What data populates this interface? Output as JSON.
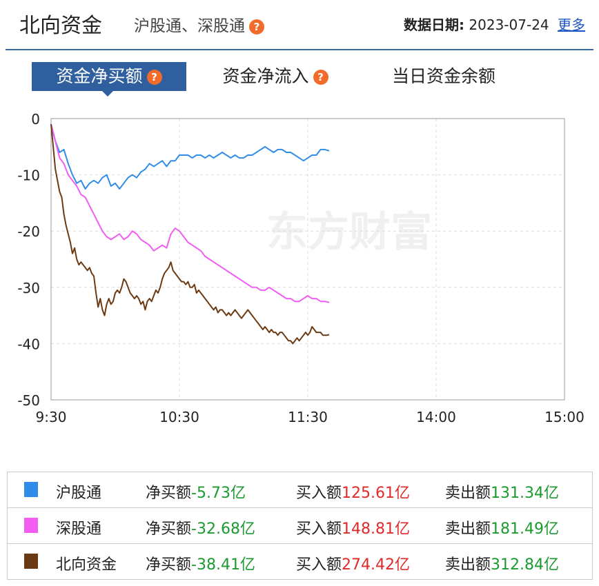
{
  "header": {
    "title": "北向资金",
    "subtitle": "沪股通、深股通",
    "date_label": "数据日期:",
    "date_value": "2023-07-24",
    "more_label": "更多"
  },
  "tabs": [
    {
      "label": "资金净买额",
      "active": true,
      "help": true
    },
    {
      "label": "资金净流入",
      "active": false,
      "help": true
    },
    {
      "label": "当日资金余额",
      "active": false,
      "help": false
    }
  ],
  "watermark": "东方财富",
  "colors": {
    "hgt": "#2f8ce8",
    "sgt": "#f25cf2",
    "north": "#6b3a12",
    "tab_active": "#2f5f9e",
    "net_value": "#1b9a2f",
    "buy_value": "#e02a2a"
  },
  "chart_data": {
    "type": "line",
    "xlabel": "",
    "ylabel": "",
    "x_ticks": [
      "9:30",
      "10:30",
      "11:30",
      "14:00",
      "15:00"
    ],
    "y_ticks": [
      0,
      -10,
      -20,
      -30,
      -40,
      -50
    ],
    "ylim": [
      -50,
      0
    ],
    "grid": true,
    "series": [
      {
        "name": "沪股通",
        "color_key": "hgt",
        "points": [
          [
            0,
            -1
          ],
          [
            2,
            -4
          ],
          [
            4,
            -6
          ],
          [
            6,
            -5.5
          ],
          [
            8,
            -8
          ],
          [
            10,
            -10
          ],
          [
            12,
            -11.5
          ],
          [
            14,
            -11
          ],
          [
            16,
            -12.5
          ],
          [
            18,
            -11.5
          ],
          [
            20,
            -11
          ],
          [
            22,
            -11.5
          ],
          [
            24,
            -10.5
          ],
          [
            26,
            -10
          ],
          [
            28,
            -12
          ],
          [
            30,
            -11.5
          ],
          [
            32,
            -12.5
          ],
          [
            34,
            -11.5
          ],
          [
            36,
            -10.5
          ],
          [
            38,
            -10
          ],
          [
            40,
            -10.5
          ],
          [
            42,
            -9.5
          ],
          [
            44,
            -9
          ],
          [
            46,
            -8
          ],
          [
            48,
            -8.5
          ],
          [
            50,
            -8
          ],
          [
            52,
            -7.5
          ],
          [
            54,
            -8.5
          ],
          [
            56,
            -7.5
          ],
          [
            58,
            -7.5
          ],
          [
            60,
            -6.5
          ],
          [
            62,
            -6.5
          ],
          [
            64,
            -6.5
          ],
          [
            66,
            -7
          ],
          [
            68,
            -6.5
          ],
          [
            70,
            -6.5
          ],
          [
            72,
            -7
          ],
          [
            74,
            -6.5
          ],
          [
            76,
            -7
          ],
          [
            78,
            -6.5
          ],
          [
            80,
            -6
          ],
          [
            82,
            -6.5
          ],
          [
            84,
            -7
          ],
          [
            86,
            -6.5
          ],
          [
            88,
            -7
          ],
          [
            90,
            -7
          ],
          [
            92,
            -6.5
          ],
          [
            94,
            -6.5
          ],
          [
            96,
            -6
          ],
          [
            98,
            -5.5
          ],
          [
            100,
            -5
          ],
          [
            102,
            -5.5
          ],
          [
            104,
            -6
          ],
          [
            106,
            -5.5
          ],
          [
            108,
            -5.5
          ],
          [
            110,
            -6
          ],
          [
            112,
            -6
          ],
          [
            114,
            -6.5
          ],
          [
            116,
            -7
          ],
          [
            118,
            -7.5
          ],
          [
            120,
            -7
          ],
          [
            122,
            -6.5
          ],
          [
            124,
            -6.5
          ],
          [
            126,
            -5.5
          ],
          [
            128,
            -5.5
          ],
          [
            130,
            -5.73
          ]
        ]
      },
      {
        "name": "深股通",
        "color_key": "sgt",
        "points": [
          [
            0,
            -1
          ],
          [
            2,
            -4
          ],
          [
            4,
            -7
          ],
          [
            6,
            -8
          ],
          [
            8,
            -10
          ],
          [
            10,
            -11
          ],
          [
            12,
            -12
          ],
          [
            14,
            -13.5
          ],
          [
            16,
            -14
          ],
          [
            18,
            -15.5
          ],
          [
            20,
            -17
          ],
          [
            22,
            -18.5
          ],
          [
            24,
            -20
          ],
          [
            26,
            -21
          ],
          [
            28,
            -21.5
          ],
          [
            30,
            -21
          ],
          [
            32,
            -20.5
          ],
          [
            34,
            -21.5
          ],
          [
            36,
            -21
          ],
          [
            38,
            -20
          ],
          [
            40,
            -20.5
          ],
          [
            42,
            -21.5
          ],
          [
            44,
            -22
          ],
          [
            46,
            -22.5
          ],
          [
            48,
            -23.5
          ],
          [
            50,
            -23
          ],
          [
            52,
            -22.5
          ],
          [
            54,
            -23
          ],
          [
            56,
            -20.5
          ],
          [
            58,
            -19.5
          ],
          [
            60,
            -20
          ],
          [
            62,
            -21
          ],
          [
            64,
            -22
          ],
          [
            66,
            -22.5
          ],
          [
            68,
            -23
          ],
          [
            70,
            -23.5
          ],
          [
            72,
            -24.5
          ],
          [
            74,
            -25
          ],
          [
            76,
            -25.5
          ],
          [
            78,
            -26
          ],
          [
            80,
            -26.5
          ],
          [
            82,
            -27
          ],
          [
            84,
            -27.5
          ],
          [
            86,
            -28
          ],
          [
            88,
            -28.5
          ],
          [
            90,
            -29
          ],
          [
            92,
            -29.5
          ],
          [
            94,
            -30
          ],
          [
            96,
            -30
          ],
          [
            98,
            -30.5
          ],
          [
            100,
            -30.5
          ],
          [
            102,
            -30
          ],
          [
            104,
            -30.5
          ],
          [
            106,
            -31
          ],
          [
            108,
            -31.5
          ],
          [
            110,
            -32
          ],
          [
            112,
            -32
          ],
          [
            114,
            -32.5
          ],
          [
            116,
            -32.5
          ],
          [
            118,
            -32
          ],
          [
            120,
            -31.5
          ],
          [
            122,
            -32
          ],
          [
            124,
            -32
          ],
          [
            126,
            -32.5
          ],
          [
            128,
            -32.5
          ],
          [
            130,
            -32.68
          ]
        ]
      },
      {
        "name": "北向资金",
        "color_key": "north",
        "points": [
          [
            0,
            -1
          ],
          [
            1,
            -5
          ],
          [
            2,
            -9
          ],
          [
            3,
            -11
          ],
          [
            4,
            -13
          ],
          [
            5,
            -14
          ],
          [
            6,
            -17
          ],
          [
            7,
            -19
          ],
          [
            8,
            -20.5
          ],
          [
            9,
            -22
          ],
          [
            10,
            -24
          ],
          [
            11,
            -23
          ],
          [
            12,
            -25
          ],
          [
            13,
            -26
          ],
          [
            14,
            -25.5
          ],
          [
            15,
            -26
          ],
          [
            16,
            -26.5
          ],
          [
            17,
            -27
          ],
          [
            18,
            -26.5
          ],
          [
            19,
            -27.5
          ],
          [
            20,
            -28
          ],
          [
            21,
            -31
          ],
          [
            22,
            -33.5
          ],
          [
            23,
            -32
          ],
          [
            24,
            -34
          ],
          [
            25,
            -35
          ],
          [
            26,
            -33
          ],
          [
            27,
            -32
          ],
          [
            28,
            -33
          ],
          [
            29,
            -32.5
          ],
          [
            30,
            -31
          ],
          [
            31,
            -30.5
          ],
          [
            32,
            -31
          ],
          [
            33,
            -30
          ],
          [
            34,
            -28.5
          ],
          [
            35,
            -29
          ],
          [
            36,
            -30
          ],
          [
            37,
            -31
          ],
          [
            38,
            -31.5
          ],
          [
            39,
            -32
          ],
          [
            40,
            -31.5
          ],
          [
            41,
            -32
          ],
          [
            42,
            -33
          ],
          [
            43,
            -32.5
          ],
          [
            44,
            -34
          ],
          [
            45,
            -32.5
          ],
          [
            46,
            -32
          ],
          [
            47,
            -32.5
          ],
          [
            48,
            -31.5
          ],
          [
            49,
            -30.5
          ],
          [
            50,
            -31
          ],
          [
            51,
            -30
          ],
          [
            52,
            -28.5
          ],
          [
            53,
            -27.5
          ],
          [
            54,
            -27
          ],
          [
            55,
            -26.5
          ],
          [
            56,
            -25.5
          ],
          [
            57,
            -27
          ],
          [
            58,
            -27.5
          ],
          [
            59,
            -28
          ],
          [
            60,
            -28.5
          ],
          [
            61,
            -29
          ],
          [
            62,
            -29
          ],
          [
            63,
            -29.5
          ],
          [
            64,
            -29
          ],
          [
            65,
            -30
          ],
          [
            66,
            -30
          ],
          [
            67,
            -29.5
          ],
          [
            68,
            -31
          ],
          [
            69,
            -30.5
          ],
          [
            70,
            -31
          ],
          [
            71,
            -31.5
          ],
          [
            72,
            -32
          ],
          [
            73,
            -32.5
          ],
          [
            74,
            -33
          ],
          [
            75,
            -33.5
          ],
          [
            76,
            -34
          ],
          [
            77,
            -33.5
          ],
          [
            78,
            -34.5
          ],
          [
            79,
            -34
          ],
          [
            80,
            -34
          ],
          [
            81,
            -34.5
          ],
          [
            82,
            -35
          ],
          [
            83,
            -34.5
          ],
          [
            84,
            -35
          ],
          [
            85,
            -34.5
          ],
          [
            86,
            -34
          ],
          [
            87,
            -34.5
          ],
          [
            88,
            -35
          ],
          [
            89,
            -35.5
          ],
          [
            90,
            -35
          ],
          [
            91,
            -34.5
          ],
          [
            92,
            -34
          ],
          [
            93,
            -34.5
          ],
          [
            94,
            -35
          ],
          [
            95,
            -35.5
          ],
          [
            96,
            -36
          ],
          [
            97,
            -36.5
          ],
          [
            98,
            -37
          ],
          [
            99,
            -37.5
          ],
          [
            100,
            -37
          ],
          [
            101,
            -37.5
          ],
          [
            102,
            -38
          ],
          [
            103,
            -37.5
          ],
          [
            104,
            -38
          ],
          [
            105,
            -38
          ],
          [
            106,
            -38.5
          ],
          [
            107,
            -38
          ],
          [
            108,
            -38
          ],
          [
            109,
            -38.5
          ],
          [
            110,
            -39
          ],
          [
            111,
            -39.5
          ],
          [
            112,
            -39.5
          ],
          [
            113,
            -40
          ],
          [
            114,
            -39.5
          ],
          [
            115,
            -39
          ],
          [
            116,
            -39.5
          ],
          [
            117,
            -39
          ],
          [
            118,
            -38.5
          ],
          [
            119,
            -38
          ],
          [
            120,
            -38.5
          ],
          [
            121,
            -38
          ],
          [
            122,
            -37
          ],
          [
            123,
            -37.5
          ],
          [
            124,
            -38
          ],
          [
            125,
            -38
          ],
          [
            126,
            -38
          ],
          [
            127,
            -38.5
          ],
          [
            128,
            -38.5
          ],
          [
            129,
            -38.5
          ],
          [
            130,
            -38.41
          ]
        ]
      }
    ]
  },
  "legend": [
    {
      "name": "沪股通",
      "color_key": "hgt",
      "net_label": "净买额",
      "net_value": "-5.73亿",
      "buy_label": "买入额",
      "buy_value": "125.61亿",
      "sell_label": "卖出额",
      "sell_value": "131.34亿"
    },
    {
      "name": "深股通",
      "color_key": "sgt",
      "net_label": "净买额",
      "net_value": "-32.68亿",
      "buy_label": "买入额",
      "buy_value": "148.81亿",
      "sell_label": "卖出额",
      "sell_value": "181.49亿"
    },
    {
      "name": "北向资金",
      "color_key": "north",
      "net_label": "净买额",
      "net_value": "-38.41亿",
      "buy_label": "买入额",
      "buy_value": "274.42亿",
      "sell_label": "卖出额",
      "sell_value": "312.84亿"
    }
  ]
}
